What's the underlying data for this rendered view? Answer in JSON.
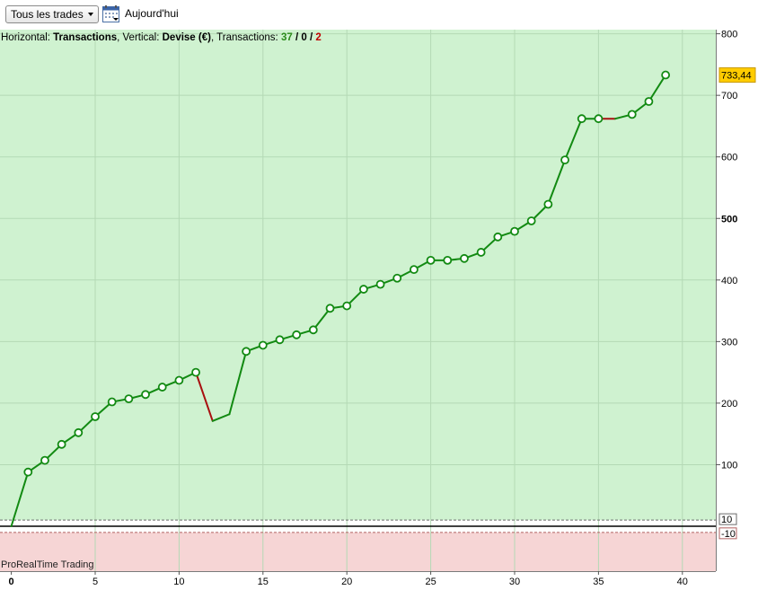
{
  "toolbar": {
    "filter_label": "Tous les trades",
    "today_label": "Aujourd'hui"
  },
  "info": {
    "h_prefix": "Horizontal: ",
    "h_value": "Transactions",
    "v_prefix": ", Vertical: ",
    "v_value": "Devise (€)",
    "t_prefix": ", Transactions: ",
    "t_win": "37",
    "sep": " / ",
    "t_zero": "0",
    "t_loss": "2"
  },
  "brand": "ProRealTime Trading",
  "colors": {
    "gain_bg": "#cff2d0",
    "loss_bg": "#f6d5d5",
    "line_up": "#128a12",
    "line_down": "#a81010",
    "last_value_bg": "#ffcc00"
  },
  "chart_data": {
    "type": "line",
    "x": [
      0,
      1,
      2,
      3,
      4,
      5,
      6,
      7,
      8,
      9,
      10,
      11,
      12,
      13,
      14,
      15,
      16,
      17,
      18,
      19,
      20,
      21,
      22,
      23,
      24,
      25,
      26,
      27,
      28,
      29,
      30,
      31,
      32,
      33,
      34,
      35,
      36,
      37,
      38,
      39
    ],
    "y": [
      0,
      88,
      107,
      133,
      152,
      178,
      202,
      207,
      214,
      226,
      237,
      250,
      171,
      182,
      284,
      294,
      303,
      311,
      319,
      354,
      358,
      385,
      393,
      403,
      417,
      432,
      432,
      435,
      445,
      470,
      479,
      496,
      523,
      595,
      662,
      662,
      662,
      669,
      690,
      733
    ],
    "markers": [
      false,
      true,
      true,
      true,
      true,
      true,
      true,
      true,
      true,
      true,
      true,
      true,
      false,
      false,
      true,
      true,
      true,
      true,
      true,
      true,
      true,
      true,
      true,
      true,
      true,
      true,
      true,
      true,
      true,
      true,
      true,
      true,
      true,
      true,
      true,
      true,
      false,
      true,
      true,
      true
    ],
    "loss_segments": [
      [
        11,
        12
      ],
      [
        35,
        36
      ]
    ],
    "xlim": [
      0,
      42
    ],
    "ylim": [
      -60,
      810
    ],
    "x_ticks": [
      "0",
      "5",
      "10",
      "15",
      "20",
      "25",
      "30",
      "35",
      "40"
    ],
    "y_ticks": [
      "100",
      "200",
      "300",
      "400",
      "500",
      "600",
      "700",
      "800"
    ],
    "bold_y_ticks": [
      "500"
    ],
    "threshold_labels": [
      "10",
      "-10"
    ],
    "last_value_label": "733,44",
    "grid": true
  }
}
